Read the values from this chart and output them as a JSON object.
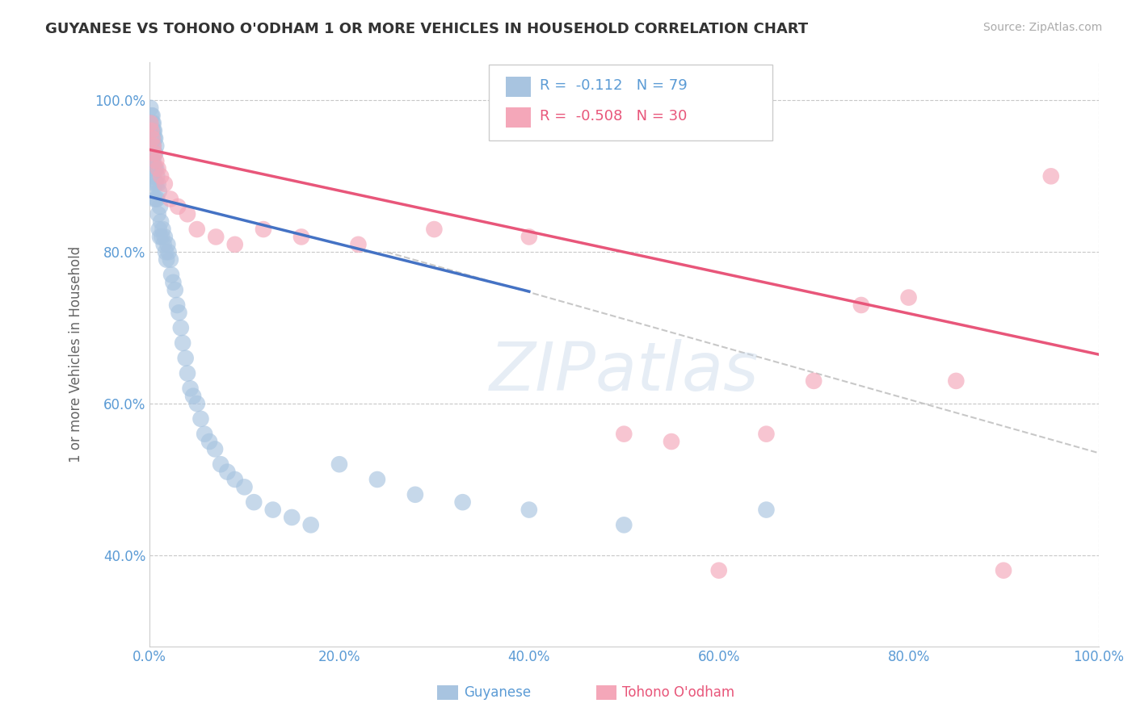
{
  "title": "GUYANESE VS TOHONO O'ODHAM 1 OR MORE VEHICLES IN HOUSEHOLD CORRELATION CHART",
  "source": "Source: ZipAtlas.com",
  "ylabel": "1 or more Vehicles in Household",
  "xlim": [
    0.0,
    1.0
  ],
  "ylim": [
    0.28,
    1.05
  ],
  "xticks": [
    0.0,
    0.2,
    0.4,
    0.6,
    0.8,
    1.0
  ],
  "xticklabels": [
    "0.0%",
    "20.0%",
    "40.0%",
    "60.0%",
    "80.0%",
    "100.0%"
  ],
  "yticks": [
    0.4,
    0.6,
    0.8,
    1.0
  ],
  "yticklabels": [
    "40.0%",
    "60.0%",
    "80.0%",
    "100.0%"
  ],
  "R_blue": -0.112,
  "N_blue": 79,
  "R_pink": -0.508,
  "N_pink": 30,
  "blue_color": "#a8c4e0",
  "blue_line_color": "#4472c4",
  "pink_color": "#f4a7b9",
  "pink_line_color": "#e8567a",
  "watermark": "ZIPatlas",
  "background_color": "#ffffff",
  "grid_color": "#c8c8c8",
  "blue_scatter_x": [
    0.001,
    0.001,
    0.002,
    0.002,
    0.002,
    0.002,
    0.003,
    0.003,
    0.003,
    0.003,
    0.003,
    0.003,
    0.004,
    0.004,
    0.004,
    0.004,
    0.004,
    0.005,
    0.005,
    0.005,
    0.005,
    0.005,
    0.005,
    0.006,
    0.006,
    0.006,
    0.007,
    0.007,
    0.007,
    0.007,
    0.008,
    0.008,
    0.009,
    0.009,
    0.01,
    0.01,
    0.011,
    0.011,
    0.012,
    0.013,
    0.014,
    0.015,
    0.016,
    0.017,
    0.018,
    0.019,
    0.02,
    0.022,
    0.023,
    0.025,
    0.027,
    0.029,
    0.031,
    0.033,
    0.035,
    0.038,
    0.04,
    0.043,
    0.046,
    0.05,
    0.054,
    0.058,
    0.063,
    0.069,
    0.075,
    0.082,
    0.09,
    0.1,
    0.11,
    0.13,
    0.15,
    0.17,
    0.2,
    0.24,
    0.28,
    0.33,
    0.4,
    0.5,
    0.65
  ],
  "blue_scatter_y": [
    0.99,
    0.97,
    0.98,
    0.96,
    0.95,
    0.94,
    0.98,
    0.97,
    0.96,
    0.95,
    0.92,
    0.9,
    0.97,
    0.96,
    0.94,
    0.92,
    0.9,
    0.96,
    0.95,
    0.93,
    0.91,
    0.89,
    0.87,
    0.95,
    0.93,
    0.91,
    0.94,
    0.91,
    0.89,
    0.87,
    0.9,
    0.87,
    0.89,
    0.85,
    0.88,
    0.83,
    0.86,
    0.82,
    0.84,
    0.82,
    0.83,
    0.81,
    0.82,
    0.8,
    0.79,
    0.81,
    0.8,
    0.79,
    0.77,
    0.76,
    0.75,
    0.73,
    0.72,
    0.7,
    0.68,
    0.66,
    0.64,
    0.62,
    0.61,
    0.6,
    0.58,
    0.56,
    0.55,
    0.54,
    0.52,
    0.51,
    0.5,
    0.49,
    0.47,
    0.46,
    0.45,
    0.44,
    0.52,
    0.5,
    0.48,
    0.47,
    0.46,
    0.44,
    0.46
  ],
  "pink_scatter_x": [
    0.001,
    0.002,
    0.003,
    0.004,
    0.005,
    0.007,
    0.009,
    0.012,
    0.016,
    0.022,
    0.03,
    0.04,
    0.05,
    0.07,
    0.09,
    0.12,
    0.16,
    0.22,
    0.3,
    0.4,
    0.5,
    0.55,
    0.6,
    0.65,
    0.7,
    0.75,
    0.8,
    0.85,
    0.9,
    0.95
  ],
  "pink_scatter_y": [
    0.97,
    0.96,
    0.95,
    0.94,
    0.93,
    0.92,
    0.91,
    0.9,
    0.89,
    0.87,
    0.86,
    0.85,
    0.83,
    0.82,
    0.81,
    0.83,
    0.82,
    0.81,
    0.83,
    0.82,
    0.56,
    0.55,
    0.38,
    0.56,
    0.63,
    0.73,
    0.74,
    0.63,
    0.38,
    0.9
  ],
  "blue_line_x": [
    0.0,
    0.4
  ],
  "blue_line_y": [
    0.873,
    0.748
  ],
  "pink_line_x": [
    0.0,
    1.0
  ],
  "pink_line_y": [
    0.935,
    0.665
  ],
  "dashed_line_x": [
    0.25,
    1.0
  ],
  "dashed_line_y": [
    0.8,
    0.535
  ]
}
